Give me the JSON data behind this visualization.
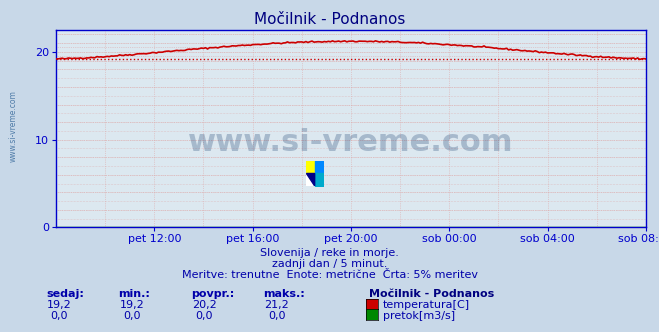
{
  "title": "Močilnik - Podnanos",
  "bg_color": "#c8d8e8",
  "plot_bg_color": "#dce8f0",
  "grid_dot_color": "#ddaaaa",
  "grid_main_color": "#ddaaaa",
  "title_color": "#000080",
  "axis_color": "#0000cc",
  "text_color": "#0000aa",
  "spine_color": "#0000cc",
  "xlim": [
    0,
    288
  ],
  "ylim": [
    0,
    22.5
  ],
  "yticks": [
    0,
    10,
    20
  ],
  "xtick_labels": [
    "pet 12:00",
    "pet 16:00",
    "pet 20:00",
    "sob 00:00",
    "sob 04:00",
    "sob 08:00"
  ],
  "xtick_positions": [
    48,
    96,
    144,
    192,
    240,
    288
  ],
  "temp_color": "#cc0000",
  "pretok_color": "#008800",
  "avg_line_color": "#cc0000",
  "avg_value": 19.2,
  "temp_min": 19.2,
  "temp_max": 21.2,
  "temp_avg": 20.2,
  "temp_sedaj": 19.2,
  "pretok_min": 0.0,
  "pretok_max": 0.0,
  "pretok_avg": 0.0,
  "pretok_sedaj": 0.0,
  "subtitle1": "Slovenija / reke in morje.",
  "subtitle2": "zadnji dan / 5 minut.",
  "subtitle3": "Meritve: trenutne  Enote: metrične  Črta: 5% meritev",
  "legend_title": "Močilnik - Podnanos",
  "label_sedaj": "sedaj:",
  "label_min": "min.:",
  "label_povpr": "povpr.:",
  "label_maks": "maks.:",
  "label_temp": "temperatura[C]",
  "label_pretok": "pretok[m3/s]",
  "watermark": "www.si-vreme.com"
}
